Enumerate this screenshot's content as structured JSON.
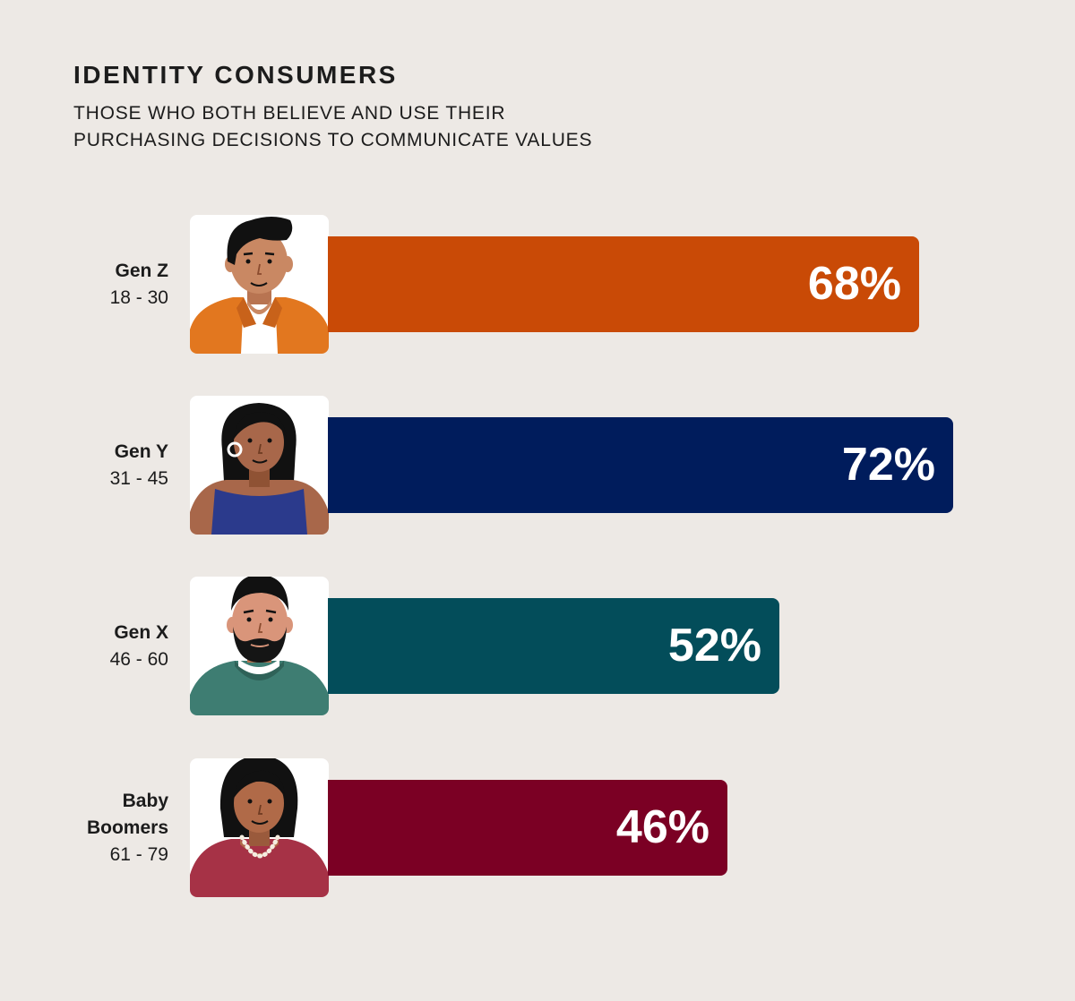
{
  "title": "IDENTITY CONSUMERS",
  "subtitle_lines": [
    "THOSE WHO BOTH BELIEVE AND USE THEIR",
    "PURCHASING DECISIONS TO COMMUNICATE VALUES"
  ],
  "colors": {
    "background": "#ede9e5",
    "gen_z": "#c94a06",
    "gen_y": "#001c5c",
    "gen_x": "#034d5a",
    "baby_boomers": "#7b0024"
  },
  "chart_data": {
    "type": "bar",
    "orientation": "horizontal",
    "title": "IDENTITY CONSUMERS",
    "subtitle": "THOSE WHO BOTH BELIEVE AND USE THEIR PURCHASING DECISIONS TO COMMUNICATE VALUES",
    "unit": "%",
    "xlim": [
      0,
      100
    ],
    "grid": false,
    "categories": [
      "Gen Z",
      "Gen Y",
      "Gen X",
      "Baby Boomers"
    ],
    "age_ranges": [
      "18 - 30",
      "31 - 45",
      "46 - 60",
      "61 - 79"
    ],
    "values": [
      68,
      72,
      52,
      46
    ],
    "value_labels": [
      "68%",
      "72%",
      "52%",
      "46%"
    ]
  },
  "rows": [
    {
      "gen_lines": [
        "Gen Z"
      ],
      "age": "18 - 30",
      "value": 68,
      "label": "68%",
      "color": "#c94a06",
      "avatar_icon": "young-man-avatar-icon"
    },
    {
      "gen_lines": [
        "Gen Y"
      ],
      "age": "31 - 45",
      "value": 72,
      "label": "72%",
      "color": "#001c5c",
      "avatar_icon": "woman-hoop-earring-avatar-icon"
    },
    {
      "gen_lines": [
        "Gen X"
      ],
      "age": "46 - 60",
      "value": 52,
      "label": "52%",
      "color": "#034d5a",
      "avatar_icon": "bearded-man-avatar-icon"
    },
    {
      "gen_lines": [
        "Baby",
        "Boomers"
      ],
      "age": "61 - 79",
      "value": 46,
      "label": "46%",
      "color": "#7b0024",
      "avatar_icon": "older-woman-pearls-avatar-icon"
    }
  ]
}
